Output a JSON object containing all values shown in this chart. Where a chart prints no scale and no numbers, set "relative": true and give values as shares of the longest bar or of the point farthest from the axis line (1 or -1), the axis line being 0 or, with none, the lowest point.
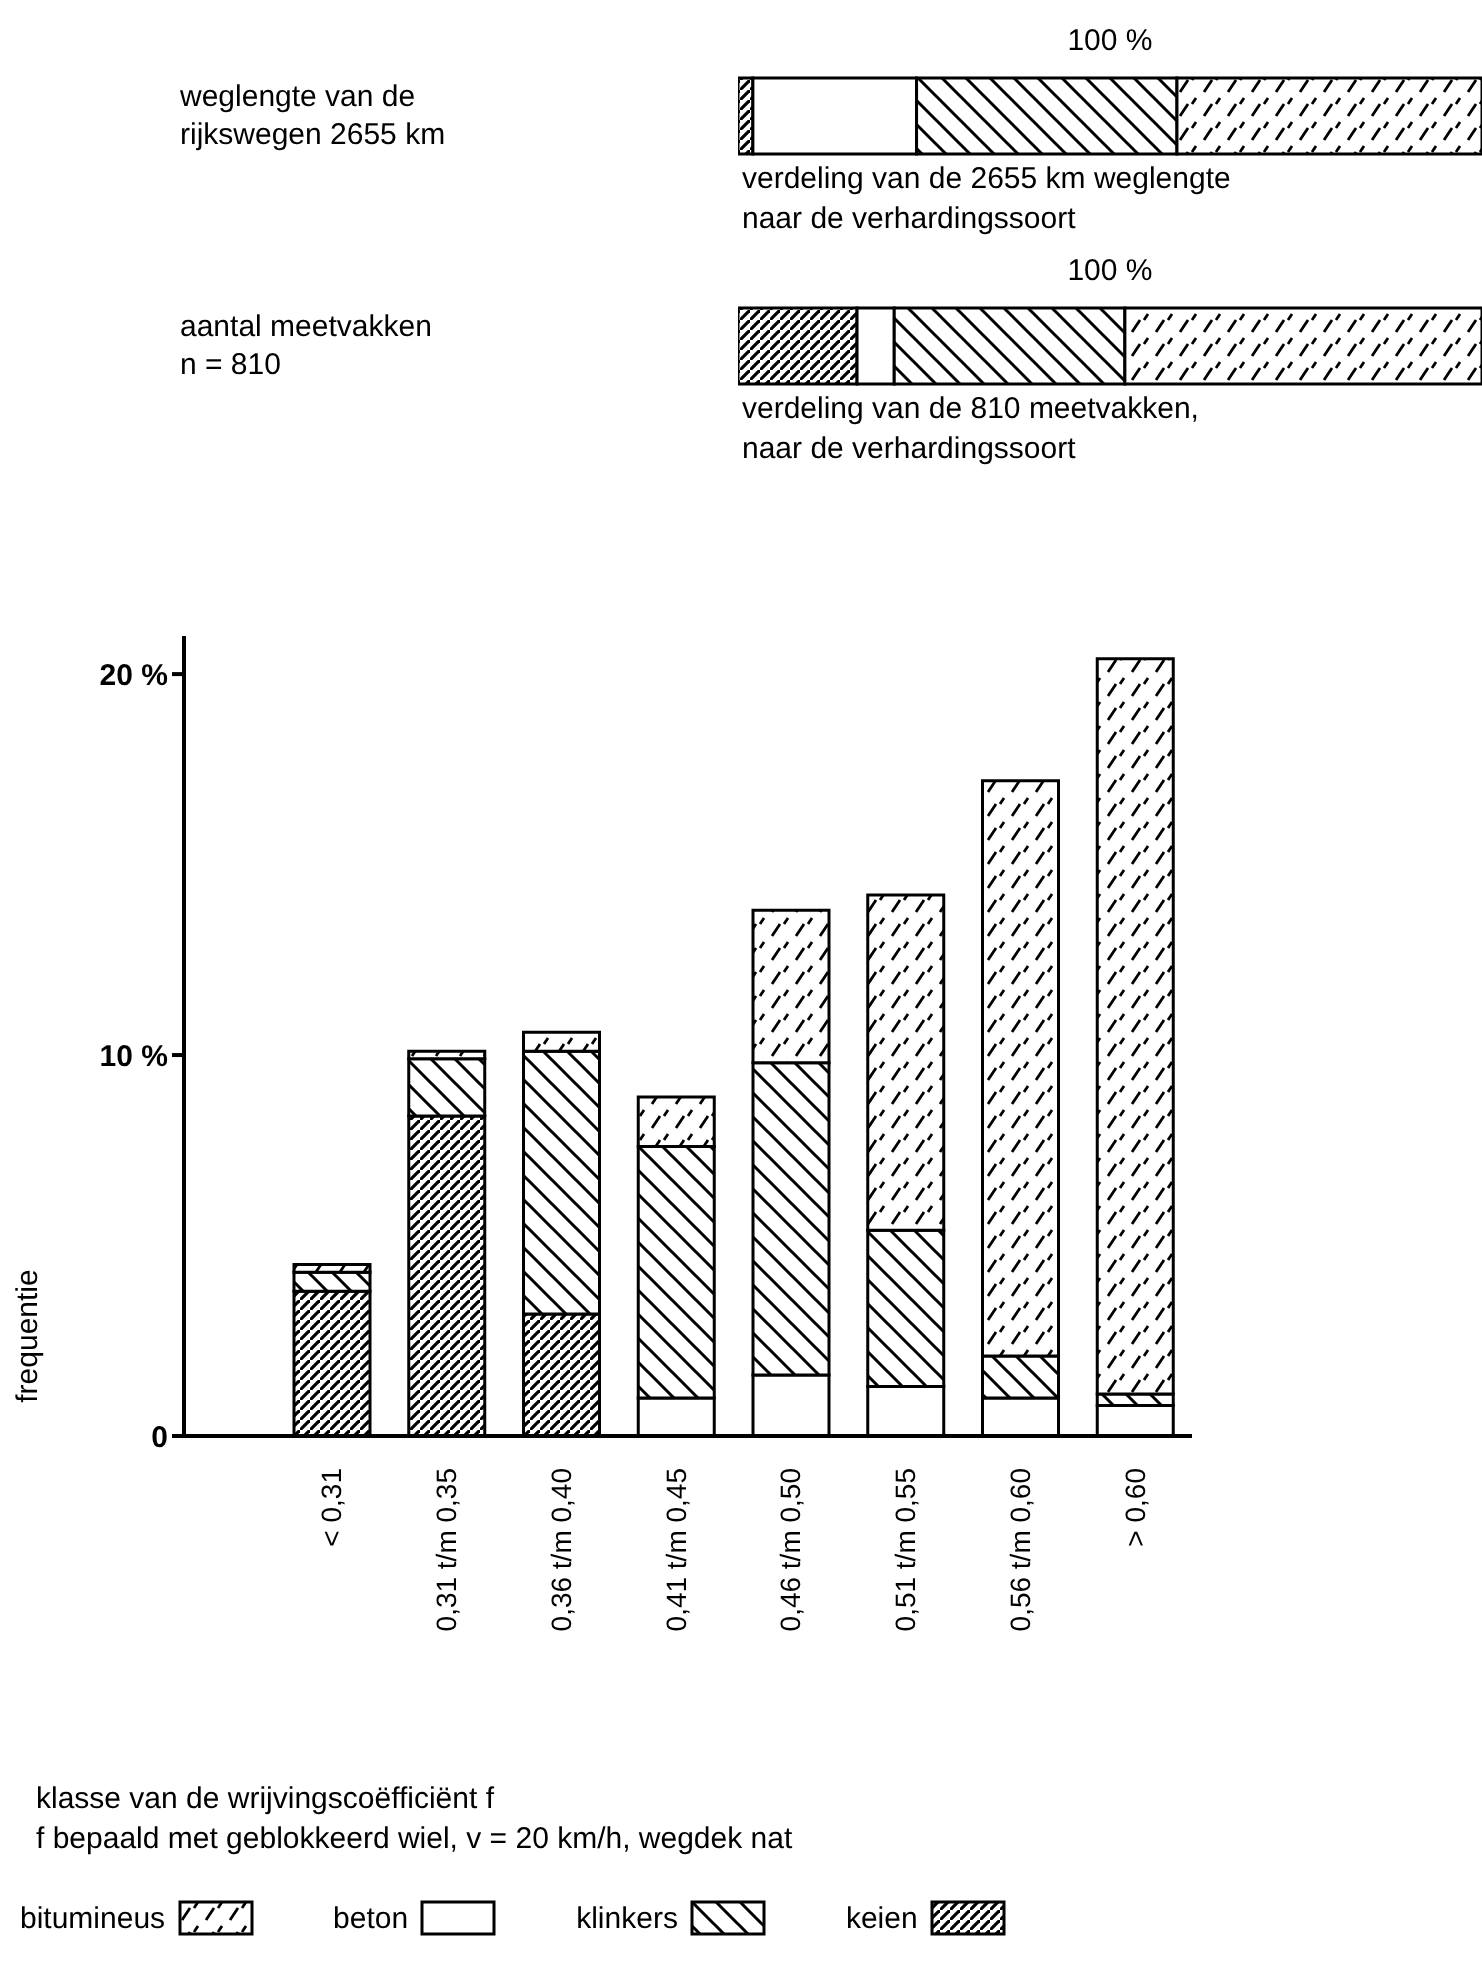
{
  "chart_data": [
    {
      "type": "bar",
      "orientation": "horizontal",
      "stacked": true,
      "relative": true,
      "categories": [
        "weglengte van de\nrijkswegen 2655 km",
        "aantal meetvakken\nn = 810"
      ],
      "series": [
        {
          "color": "#000000",
          "values": [
            0.02,
            0.16
          ]
        },
        {
          "color": "#ffffff",
          "values": [
            0.22,
            0.05
          ]
        },
        {
          "color": "#000000",
          "values": [
            0.35,
            0.31
          ]
        },
        {
          "color": "#000000",
          "values": [
            0.41,
            0.48
          ]
        }
      ],
      "annotations": [
        "100 %",
        "verdeling van de 2655 km weglengte\nnaar de verhardingssoort",
        "100 %",
        "verdeling van de 810 meetvakken,\nnaar de verhardingssoort"
      ]
    },
    {
      "type": "bar",
      "stacked": true,
      "categories": [
        "< 0,31",
        "0,31 t/m 0,35",
        "0,36 t/m 0,40",
        "0,41 t/m 0,45",
        "0,46 t/m 0,50",
        "0,51 t/m 0,55",
        "0,56 t/m 0,60",
        "> 0,60"
      ],
      "series": [
        {
          "name": "keien",
          "color": "#000000",
          "values": [
            3.8,
            8.4,
            3.2,
            0,
            0,
            0,
            0,
            0
          ]
        },
        {
          "name": "beton",
          "color": "#ffffff",
          "values": [
            0,
            0,
            0,
            1.0,
            1.6,
            1.3,
            1.0,
            0.8
          ]
        },
        {
          "name": "klinkers",
          "color": "#000000",
          "values": [
            0.5,
            1.5,
            6.9,
            6.6,
            8.2,
            4.1,
            1.1,
            0.3
          ]
        },
        {
          "name": "bitumineus",
          "color": "#000000",
          "values": [
            0.2,
            0.2,
            0.5,
            1.3,
            4.0,
            8.8,
            15.1,
            19.3
          ]
        }
      ],
      "ylim": [
        0,
        21
      ],
      "yticks": [
        0,
        {
          "value": 10,
          "label": "10 %"
        },
        {
          "value": 20,
          "label": "20 %"
        }
      ],
      "ylabel": "frequentie",
      "xlabel": "klasse van de wrijvingscoëfficiënt f",
      "annotations": [
        "f bepaald met geblokkeerd wiel, v = 20 km/h, wegdek nat"
      ],
      "grid": false,
      "legend": "bottom"
    }
  ]
}
